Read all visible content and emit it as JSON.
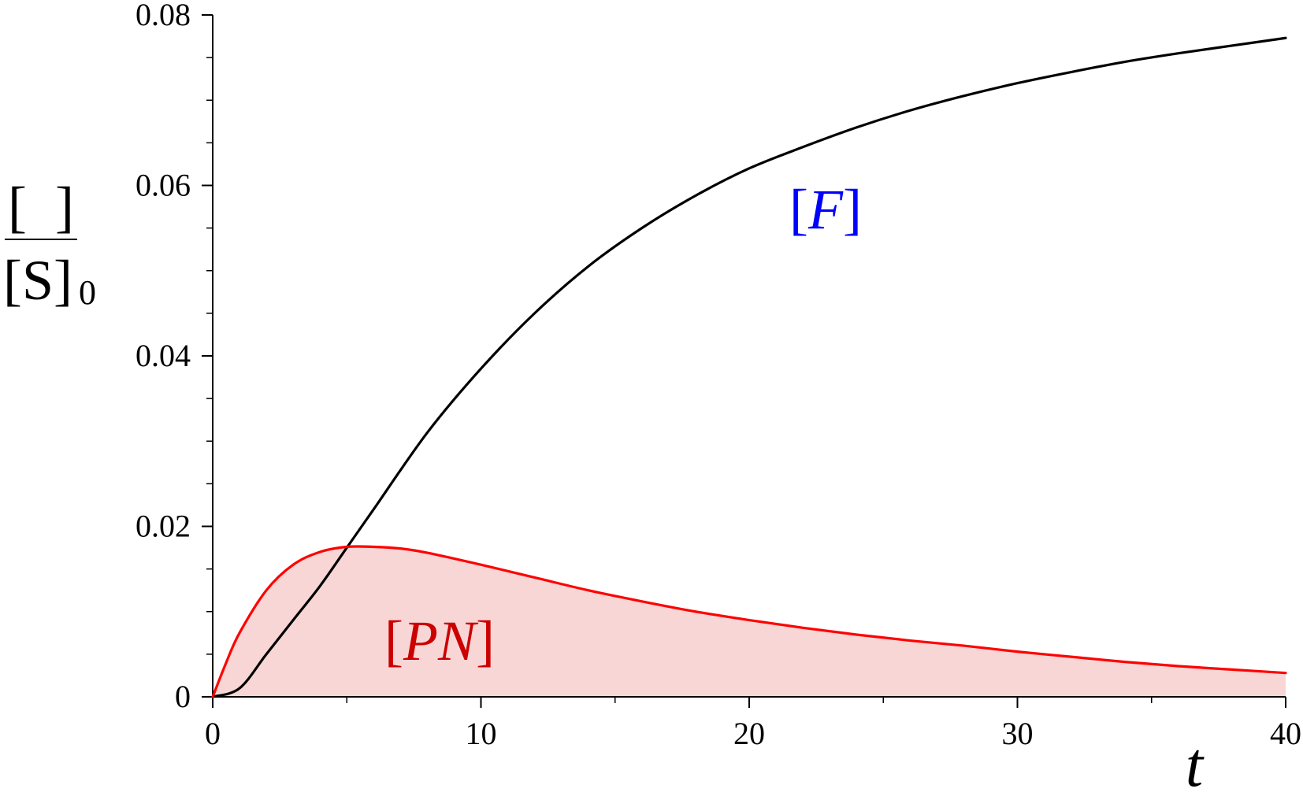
{
  "chart_data": {
    "type": "line",
    "xlabel": "t",
    "ylabel": {
      "numerator": "[  ]",
      "denominator_main": "[S]",
      "denominator_sub": "0"
    },
    "xlim": [
      0,
      40
    ],
    "ylim": [
      0,
      0.08
    ],
    "x_ticks": [
      0,
      10,
      20,
      30,
      40
    ],
    "x_tick_labels": [
      "0",
      "10",
      "20",
      "30",
      "40"
    ],
    "x_minor_step": 5,
    "y_ticks": [
      0,
      0.02,
      0.04,
      0.06,
      0.08
    ],
    "y_tick_labels": [
      "0",
      "0.02",
      "0.04",
      "0.06",
      "0.08"
    ],
    "y_minor_step": 0.005,
    "grid": false,
    "legend": "none",
    "series": [
      {
        "name": "[F]",
        "color": "#000000",
        "label_color": "#0000ff",
        "fill": false,
        "x": [
          0,
          1,
          2,
          3,
          4,
          5,
          6,
          8,
          10,
          12,
          14,
          16,
          18,
          20,
          22,
          24,
          26,
          28,
          30,
          32,
          34,
          36,
          38,
          40
        ],
        "values": [
          0,
          0.001,
          0.005,
          0.009,
          0.013,
          0.0175,
          0.022,
          0.031,
          0.0385,
          0.045,
          0.0505,
          0.055,
          0.0588,
          0.062,
          0.0645,
          0.0668,
          0.0688,
          0.0705,
          0.072,
          0.0733,
          0.0745,
          0.0755,
          0.0764,
          0.0773
        ]
      },
      {
        "name": "[PN]",
        "color": "#ff0000",
        "label_color": "#cc0000",
        "fill": true,
        "fill_color": "#f9d6d6",
        "x": [
          0,
          0.5,
          1,
          2,
          3,
          4,
          5,
          6,
          7,
          8,
          10,
          12,
          14,
          16,
          18,
          20,
          22,
          24,
          26,
          28,
          30,
          32,
          34,
          36,
          38,
          40
        ],
        "values": [
          0,
          0.004,
          0.0075,
          0.0125,
          0.0155,
          0.017,
          0.0176,
          0.0176,
          0.0174,
          0.0169,
          0.0155,
          0.014,
          0.0125,
          0.0112,
          0.01,
          0.009,
          0.0081,
          0.0073,
          0.0066,
          0.006,
          0.0053,
          0.0047,
          0.0041,
          0.0036,
          0.0032,
          0.0028
        ]
      }
    ]
  }
}
